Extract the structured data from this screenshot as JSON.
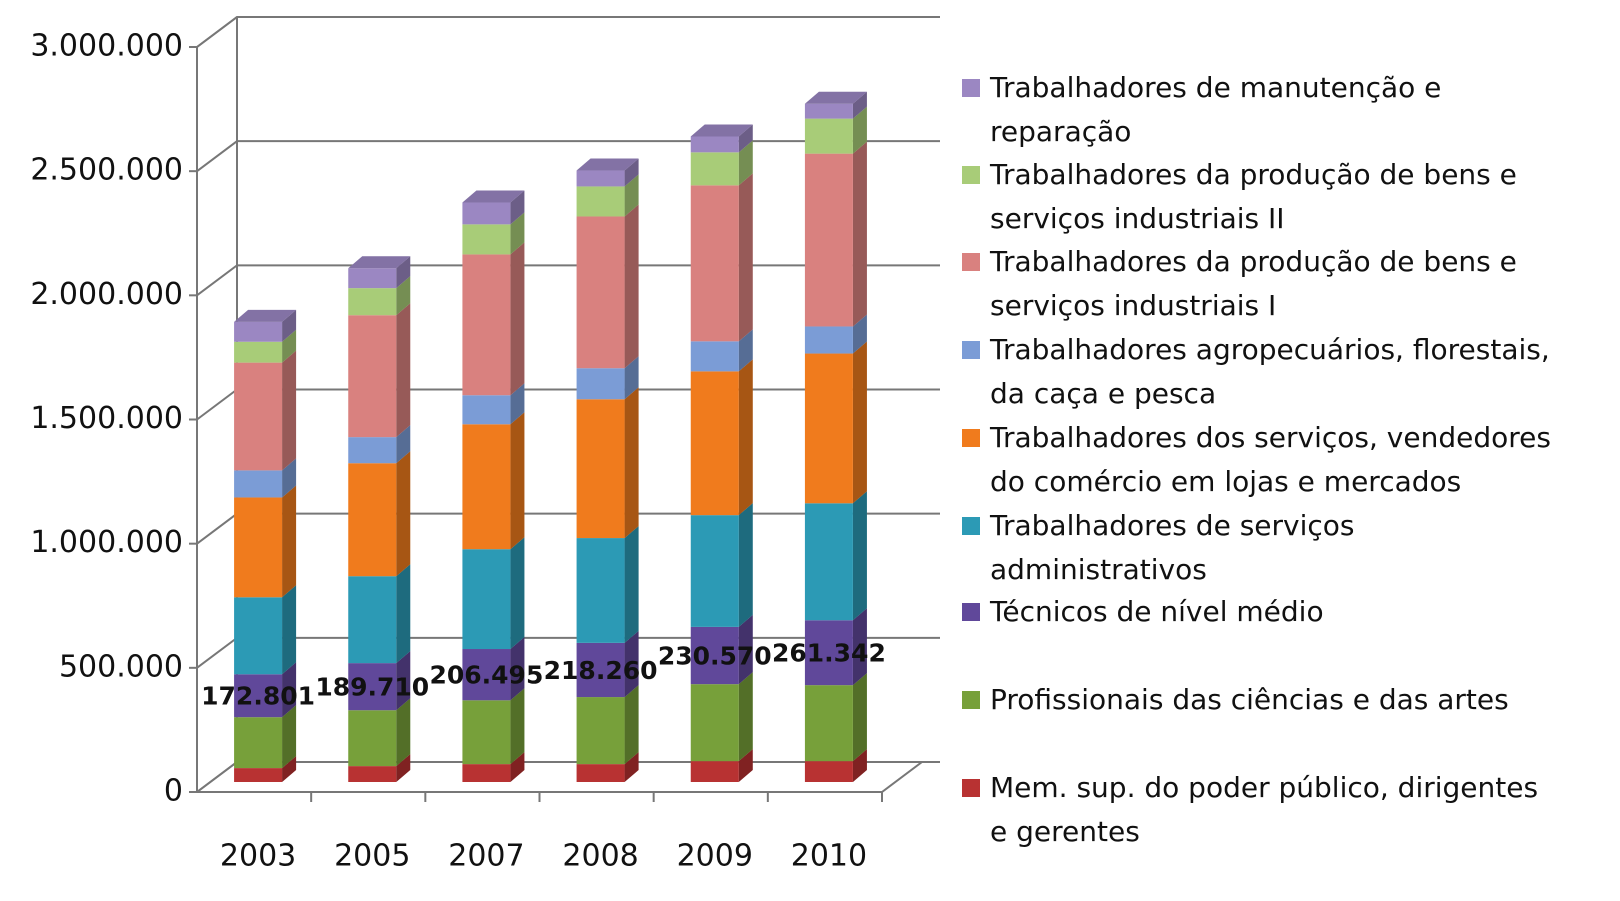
{
  "chart_data": {
    "type": "bar3d_stacked",
    "categories": [
      "2003",
      "2005",
      "2007",
      "2008",
      "2009",
      "2010"
    ],
    "series": [
      {
        "name": "Mem. sup. do poder público, dirigentes e gerentes",
        "color": "#b83232",
        "values": [
          56000,
          64000,
          72000,
          72000,
          84000,
          84000
        ]
      },
      {
        "name": "Profissionais das ciências e das artes",
        "color": "#77a03a",
        "values": [
          205000,
          225000,
          257000,
          270000,
          310000,
          306000
        ]
      },
      {
        "name": "Técnicos de nível médio",
        "color": "#60489a",
        "values": [
          172801,
          189710,
          206495,
          218260,
          230570,
          261342
        ],
        "value_labels": [
          "172.801",
          "189.710",
          "206.495",
          "218.260",
          "230.570",
          "261.342"
        ]
      },
      {
        "name": "Trabalhadores de serviços administrativos",
        "color": "#2c9ab5",
        "values": [
          310000,
          350000,
          402000,
          422000,
          450000,
          471000
        ]
      },
      {
        "name": "Trabalhadores dos serviços, vendedores do comércio em lojas e mercados",
        "color": "#f07b1d",
        "values": [
          402000,
          455000,
          503000,
          559000,
          579000,
          603000
        ]
      },
      {
        "name": "Trabalhadores agropecuários, florestais, da caça e pesca",
        "color": "#7b9cd6",
        "values": [
          109000,
          105000,
          117000,
          125000,
          121000,
          109000
        ]
      },
      {
        "name": "Trabalhadores da produção de bens e serviços industriais I",
        "color": "#d9817f",
        "values": [
          434000,
          491000,
          567000,
          611000,
          628000,
          696000
        ]
      },
      {
        "name": "Trabalhadores da produção de bens e serviços industriais II",
        "color": "#a8cc78",
        "values": [
          84000,
          109000,
          121000,
          121000,
          133000,
          141000
        ]
      },
      {
        "name": "Trabalhadores de manutenção e reparação",
        "color": "#9b87c2",
        "values": [
          80000,
          80000,
          88000,
          64000,
          64000,
          60000
        ]
      }
    ],
    "ylim": [
      0,
      3000000
    ],
    "yticks": [
      0,
      {
        "value": 500000,
        "label": "500.000"
      },
      {
        "value": 1000000,
        "label": "1.000.000"
      },
      {
        "value": 1500000,
        "label": "1.500.000"
      },
      {
        "value": 2000000,
        "label": "2.000.000"
      },
      {
        "value": 2500000,
        "label": "2.500.000"
      },
      {
        "value": 3000000,
        "label": "3.000.000"
      }
    ],
    "grid": true
  }
}
